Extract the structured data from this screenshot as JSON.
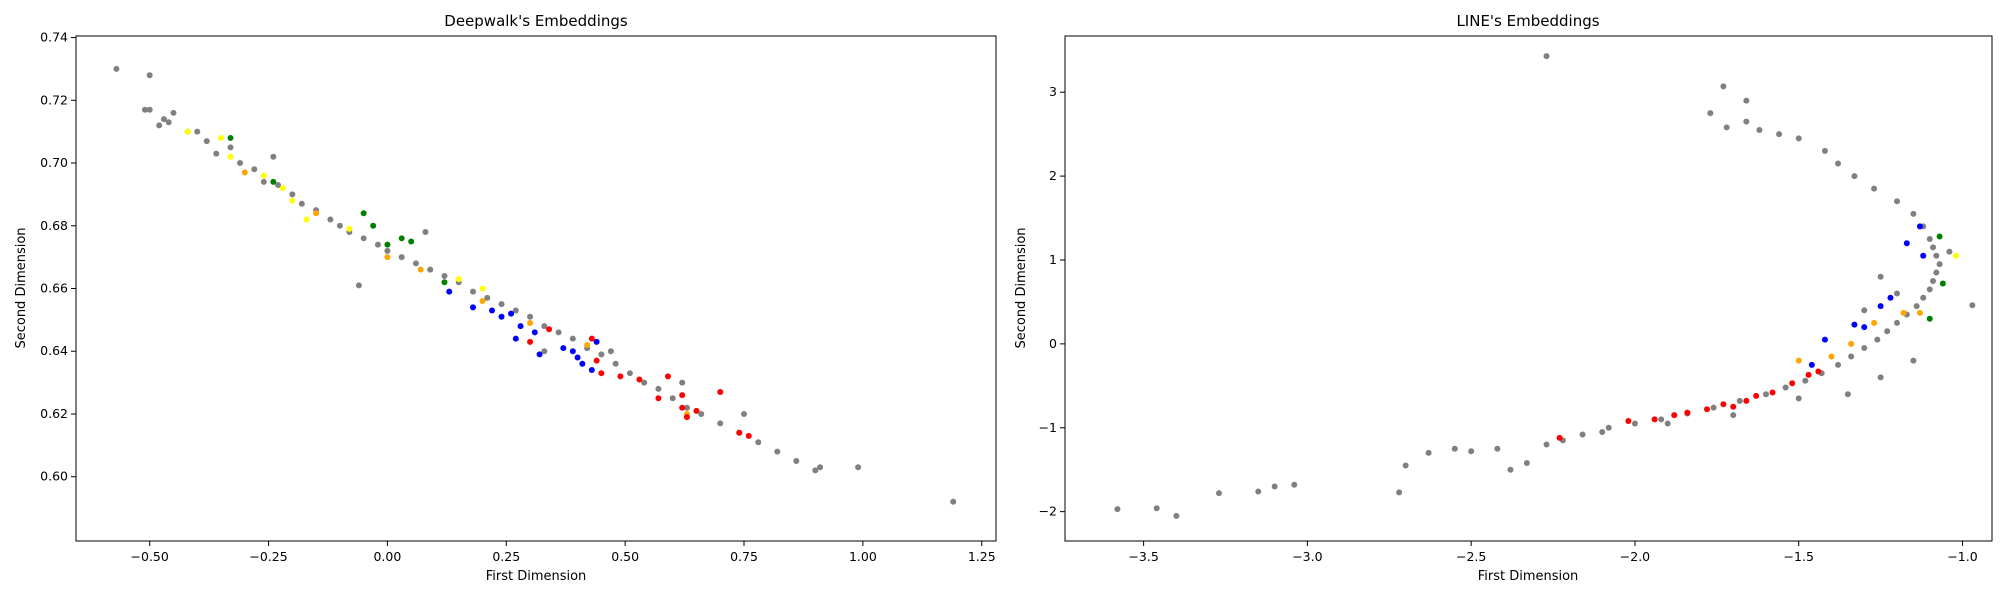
{
  "chart_data": [
    {
      "type": "scatter",
      "title": "Deepwalk's Embeddings",
      "xlabel": "First Dimension",
      "ylabel": "Second Dimension",
      "xlim": [
        -0.655,
        1.28
      ],
      "ylim": [
        0.5795,
        0.7405
      ],
      "xticks": [
        -0.5,
        -0.25,
        0.0,
        0.25,
        0.5,
        0.75,
        1.0,
        1.25
      ],
      "xtick_labels": [
        "−0.50",
        "−0.25",
        "0.00",
        "0.25",
        "0.50",
        "0.75",
        "1.00",
        "1.25"
      ],
      "yticks": [
        0.6,
        0.62,
        0.64,
        0.66,
        0.68,
        0.7,
        0.72,
        0.74
      ],
      "ytick_labels": [
        "0.60",
        "0.62",
        "0.64",
        "0.66",
        "0.68",
        "0.70",
        "0.72",
        "0.74"
      ],
      "grid": false,
      "series": [
        {
          "color": "#808080",
          "points": [
            [
              -0.57,
              0.73
            ],
            [
              -0.5,
              0.728
            ],
            [
              -0.51,
              0.717
            ],
            [
              -0.5,
              0.717
            ],
            [
              -0.48,
              0.712
            ],
            [
              -0.45,
              0.716
            ],
            [
              -0.46,
              0.713
            ],
            [
              -0.47,
              0.714
            ],
            [
              -0.42,
              0.71
            ],
            [
              -0.4,
              0.71
            ],
            [
              -0.38,
              0.707
            ],
            [
              -0.36,
              0.703
            ],
            [
              -0.33,
              0.705
            ],
            [
              -0.31,
              0.7
            ],
            [
              -0.28,
              0.698
            ],
            [
              -0.26,
              0.694
            ],
            [
              -0.23,
              0.693
            ],
            [
              -0.2,
              0.69
            ],
            [
              -0.18,
              0.687
            ],
            [
              -0.15,
              0.685
            ],
            [
              -0.12,
              0.682
            ],
            [
              -0.1,
              0.68
            ],
            [
              -0.08,
              0.678
            ],
            [
              -0.05,
              0.676
            ],
            [
              -0.02,
              0.674
            ],
            [
              0.0,
              0.672
            ],
            [
              0.03,
              0.67
            ],
            [
              0.06,
              0.668
            ],
            [
              0.09,
              0.666
            ],
            [
              0.12,
              0.664
            ],
            [
              0.15,
              0.662
            ],
            [
              0.18,
              0.659
            ],
            [
              0.21,
              0.657
            ],
            [
              0.24,
              0.655
            ],
            [
              0.27,
              0.653
            ],
            [
              0.3,
              0.651
            ],
            [
              0.33,
              0.648
            ],
            [
              0.36,
              0.646
            ],
            [
              0.39,
              0.644
            ],
            [
              0.42,
              0.641
            ],
            [
              0.45,
              0.639
            ],
            [
              0.48,
              0.636
            ],
            [
              0.51,
              0.633
            ],
            [
              0.54,
              0.63
            ],
            [
              0.57,
              0.628
            ],
            [
              0.6,
              0.625
            ],
            [
              0.63,
              0.622
            ],
            [
              0.66,
              0.62
            ],
            [
              0.7,
              0.617
            ],
            [
              0.74,
              0.614
            ],
            [
              0.78,
              0.611
            ],
            [
              0.82,
              0.608
            ],
            [
              0.86,
              0.605
            ],
            [
              0.9,
              0.602
            ],
            [
              0.91,
              0.603
            ],
            [
              0.99,
              0.603
            ],
            [
              1.19,
              0.592
            ],
            [
              -0.06,
              0.661
            ],
            [
              -0.24,
              0.702
            ],
            [
              0.08,
              0.678
            ],
            [
              0.33,
              0.64
            ],
            [
              0.47,
              0.64
            ],
            [
              0.62,
              0.63
            ],
            [
              0.75,
              0.62
            ]
          ]
        },
        {
          "color": "#ffff00",
          "points": [
            [
              -0.42,
              0.71
            ],
            [
              -0.35,
              0.708
            ],
            [
              -0.33,
              0.702
            ],
            [
              -0.26,
              0.696
            ],
            [
              -0.22,
              0.692
            ],
            [
              -0.2,
              0.688
            ],
            [
              -0.17,
              0.682
            ],
            [
              -0.08,
              0.679
            ],
            [
              0.15,
              0.663
            ],
            [
              0.2,
              0.66
            ]
          ]
        },
        {
          "color": "#008000",
          "points": [
            [
              -0.33,
              0.708
            ],
            [
              -0.24,
              0.694
            ],
            [
              -0.05,
              0.684
            ],
            [
              -0.03,
              0.68
            ],
            [
              0.03,
              0.676
            ],
            [
              0.05,
              0.675
            ],
            [
              0.0,
              0.674
            ],
            [
              0.12,
              0.662
            ]
          ]
        },
        {
          "color": "#ffa500",
          "points": [
            [
              -0.3,
              0.697
            ],
            [
              -0.15,
              0.684
            ],
            [
              0.0,
              0.67
            ],
            [
              0.07,
              0.666
            ],
            [
              0.2,
              0.656
            ],
            [
              0.3,
              0.649
            ],
            [
              0.42,
              0.642
            ],
            [
              0.63,
              0.62
            ]
          ]
        },
        {
          "color": "#0000ff",
          "points": [
            [
              0.13,
              0.659
            ],
            [
              0.18,
              0.654
            ],
            [
              0.22,
              0.653
            ],
            [
              0.24,
              0.651
            ],
            [
              0.26,
              0.652
            ],
            [
              0.28,
              0.648
            ],
            [
              0.31,
              0.646
            ],
            [
              0.27,
              0.644
            ],
            [
              0.32,
              0.639
            ],
            [
              0.37,
              0.641
            ],
            [
              0.4,
              0.638
            ],
            [
              0.41,
              0.636
            ],
            [
              0.44,
              0.643
            ],
            [
              0.43,
              0.634
            ],
            [
              0.39,
              0.64
            ]
          ]
        },
        {
          "color": "#ff0000",
          "points": [
            [
              0.34,
              0.647
            ],
            [
              0.3,
              0.643
            ],
            [
              0.44,
              0.637
            ],
            [
              0.45,
              0.633
            ],
            [
              0.49,
              0.632
            ],
            [
              0.53,
              0.631
            ],
            [
              0.57,
              0.625
            ],
            [
              0.59,
              0.632
            ],
            [
              0.62,
              0.626
            ],
            [
              0.63,
              0.619
            ],
            [
              0.62,
              0.622
            ],
            [
              0.65,
              0.621
            ],
            [
              0.7,
              0.627
            ],
            [
              0.74,
              0.614
            ],
            [
              0.76,
              0.613
            ],
            [
              0.43,
              0.644
            ]
          ]
        }
      ]
    },
    {
      "type": "scatter",
      "title": "LINE's Embeddings",
      "xlabel": "First Dimension",
      "ylabel": "Second Dimension",
      "xlim": [
        -3.74,
        -0.91
      ],
      "ylim": [
        -2.35,
        3.67
      ],
      "xticks": [
        -3.5,
        -3.0,
        -2.5,
        -2.0,
        -1.5,
        -1.0
      ],
      "xtick_labels": [
        "−3.5",
        "−3.0",
        "−2.5",
        "−2.0",
        "−1.5",
        "−1.0"
      ],
      "yticks": [
        -2,
        -1,
        0,
        1,
        2,
        3
      ],
      "ytick_labels": [
        "−2",
        "−1",
        "0",
        "1",
        "2",
        "3"
      ],
      "grid": false,
      "series": [
        {
          "color": "#808080",
          "points": [
            [
              -3.58,
              -1.97
            ],
            [
              -3.46,
              -1.96
            ],
            [
              -3.4,
              -2.05
            ],
            [
              -3.27,
              -1.78
            ],
            [
              -3.15,
              -1.76
            ],
            [
              -3.1,
              -1.7
            ],
            [
              -3.04,
              -1.68
            ],
            [
              -2.72,
              -1.77
            ],
            [
              -2.7,
              -1.45
            ],
            [
              -2.63,
              -1.3
            ],
            [
              -2.55,
              -1.25
            ],
            [
              -2.5,
              -1.28
            ],
            [
              -2.42,
              -1.25
            ],
            [
              -2.38,
              -1.5
            ],
            [
              -2.33,
              -1.42
            ],
            [
              -2.27,
              -1.2
            ],
            [
              -2.22,
              -1.15
            ],
            [
              -2.16,
              -1.08
            ],
            [
              -2.08,
              -1.0
            ],
            [
              -2.0,
              -0.95
            ],
            [
              -1.92,
              -0.9
            ],
            [
              -1.84,
              -0.83
            ],
            [
              -1.76,
              -0.76
            ],
            [
              -1.68,
              -0.68
            ],
            [
              -1.6,
              -0.6
            ],
            [
              -1.54,
              -0.52
            ],
            [
              -1.48,
              -0.44
            ],
            [
              -1.43,
              -0.35
            ],
            [
              -1.38,
              -0.25
            ],
            [
              -1.34,
              -0.15
            ],
            [
              -1.3,
              -0.05
            ],
            [
              -1.26,
              0.05
            ],
            [
              -1.23,
              0.15
            ],
            [
              -1.2,
              0.25
            ],
            [
              -1.17,
              0.35
            ],
            [
              -1.14,
              0.45
            ],
            [
              -1.12,
              0.55
            ],
            [
              -1.1,
              0.65
            ],
            [
              -1.09,
              0.75
            ],
            [
              -1.08,
              0.85
            ],
            [
              -1.07,
              0.95
            ],
            [
              -1.08,
              1.05
            ],
            [
              -1.09,
              1.15
            ],
            [
              -1.1,
              1.25
            ],
            [
              -1.12,
              1.4
            ],
            [
              -1.15,
              1.55
            ],
            [
              -1.2,
              1.7
            ],
            [
              -1.27,
              1.85
            ],
            [
              -1.33,
              2.0
            ],
            [
              -1.38,
              2.15
            ],
            [
              -1.42,
              2.3
            ],
            [
              -1.5,
              2.45
            ],
            [
              -1.56,
              2.5
            ],
            [
              -1.62,
              2.55
            ],
            [
              -1.66,
              2.65
            ],
            [
              -1.72,
              2.58
            ],
            [
              -1.77,
              2.75
            ],
            [
              -1.66,
              2.9
            ],
            [
              -1.73,
              3.07
            ],
            [
              -2.27,
              3.43
            ],
            [
              -0.97,
              0.46
            ],
            [
              -1.04,
              1.1
            ],
            [
              -1.15,
              -0.2
            ],
            [
              -1.25,
              -0.4
            ],
            [
              -1.35,
              -0.6
            ],
            [
              -1.5,
              -0.65
            ],
            [
              -1.7,
              -0.85
            ],
            [
              -1.9,
              -0.95
            ],
            [
              -2.1,
              -1.05
            ],
            [
              -1.2,
              0.6
            ],
            [
              -1.25,
              0.8
            ],
            [
              -1.3,
              0.4
            ]
          ]
        },
        {
          "color": "#008000",
          "points": [
            [
              -1.07,
              1.28
            ],
            [
              -1.06,
              0.72
            ],
            [
              -1.1,
              0.3
            ]
          ]
        },
        {
          "color": "#ffff00",
          "points": [
            [
              -1.02,
              1.05
            ]
          ]
        },
        {
          "color": "#0000ff",
          "points": [
            [
              -1.13,
              1.4
            ],
            [
              -1.17,
              1.2
            ],
            [
              -1.12,
              1.05
            ],
            [
              -1.22,
              0.55
            ],
            [
              -1.25,
              0.45
            ],
            [
              -1.3,
              0.2
            ],
            [
              -1.33,
              0.23
            ],
            [
              -1.42,
              0.05
            ],
            [
              -1.46,
              -0.25
            ]
          ]
        },
        {
          "color": "#ffa500",
          "points": [
            [
              -1.13,
              0.37
            ],
            [
              -1.18,
              0.37
            ],
            [
              -1.27,
              0.25
            ],
            [
              -1.34,
              0.0
            ],
            [
              -1.4,
              -0.15
            ],
            [
              -1.5,
              -0.2
            ]
          ]
        },
        {
          "color": "#ff0000",
          "points": [
            [
              -2.23,
              -1.12
            ],
            [
              -2.02,
              -0.92
            ],
            [
              -1.94,
              -0.9
            ],
            [
              -1.88,
              -0.85
            ],
            [
              -1.84,
              -0.82
            ],
            [
              -1.78,
              -0.78
            ],
            [
              -1.73,
              -0.72
            ],
            [
              -1.7,
              -0.75
            ],
            [
              -1.66,
              -0.68
            ],
            [
              -1.63,
              -0.62
            ],
            [
              -1.58,
              -0.58
            ],
            [
              -1.52,
              -0.47
            ],
            [
              -1.47,
              -0.37
            ],
            [
              -1.44,
              -0.33
            ]
          ]
        }
      ]
    }
  ]
}
